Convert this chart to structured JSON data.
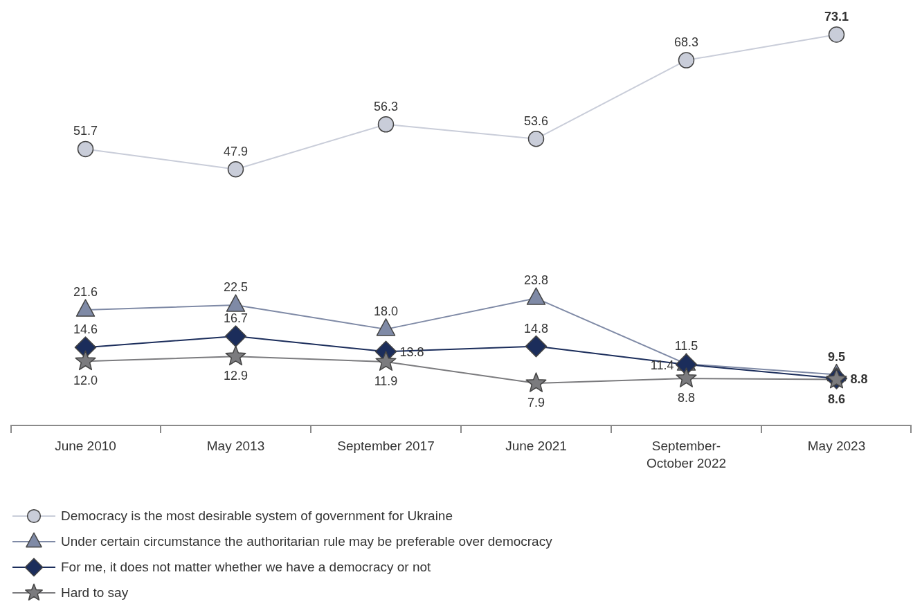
{
  "chart_data": {
    "type": "line",
    "categories": [
      "June 2010",
      "May 2013",
      "September 2017",
      "June 2021",
      "September-October 2022",
      "May 2023"
    ],
    "series": [
      {
        "name": "Democracy is the most desirable system of government for Ukraine",
        "color": "#c9cdd9",
        "marker": "circle",
        "values": [
          51.7,
          47.9,
          56.3,
          53.6,
          68.3,
          73.1
        ],
        "value_labels": [
          "51.7",
          "47.9",
          "56.3",
          "53.6",
          "68.3",
          "73.1"
        ]
      },
      {
        "name": "Under certain circumstance the authoritarian rule may be preferable over democracy",
        "color": "#7f8aa6",
        "marker": "triangle",
        "values": [
          21.6,
          22.5,
          18.0,
          23.8,
          11.5,
          9.5
        ],
        "value_labels": [
          "21.6",
          "22.5",
          "18.0",
          "23.8",
          "11.5",
          "9.5"
        ]
      },
      {
        "name": "For me, it does not matter whether we have a democracy or not",
        "color": "#1b2d5b",
        "marker": "diamond",
        "values": [
          14.6,
          16.7,
          13.8,
          14.8,
          11.4,
          8.8
        ],
        "value_labels": [
          "14.6",
          "16.7",
          "13.8",
          "14.8",
          "11.4",
          "8.8"
        ]
      },
      {
        "name": "Hard to say",
        "color": "#7b7b7e",
        "marker": "star",
        "values": [
          12.0,
          12.9,
          11.9,
          7.9,
          8.8,
          8.6
        ],
        "value_labels": [
          "12.0",
          "12.9",
          "11.9",
          "7.9",
          "8.8",
          "8.6"
        ]
      }
    ],
    "legend": "bottom left"
  }
}
